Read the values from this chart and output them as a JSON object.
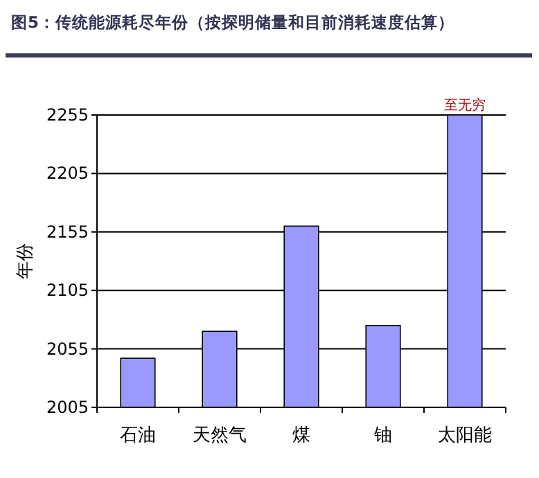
{
  "chart_data": {
    "type": "bar",
    "title": "图5：传统能源耗尽年份（按探明储量和目前消耗速度估算）",
    "ylabel": "年份",
    "categories": [
      "石油",
      "天然气",
      "煤",
      "铀",
      "太阳能"
    ],
    "values": [
      2047,
      2070,
      2160,
      2075,
      2255
    ],
    "value_labels": [
      null,
      null,
      null,
      null,
      "至无穷"
    ],
    "color": "#9999ff",
    "ylim": [
      2005,
      2255
    ],
    "yticks": [
      2005,
      2055,
      2105,
      2155,
      2205,
      2255
    ],
    "grid": "y"
  }
}
